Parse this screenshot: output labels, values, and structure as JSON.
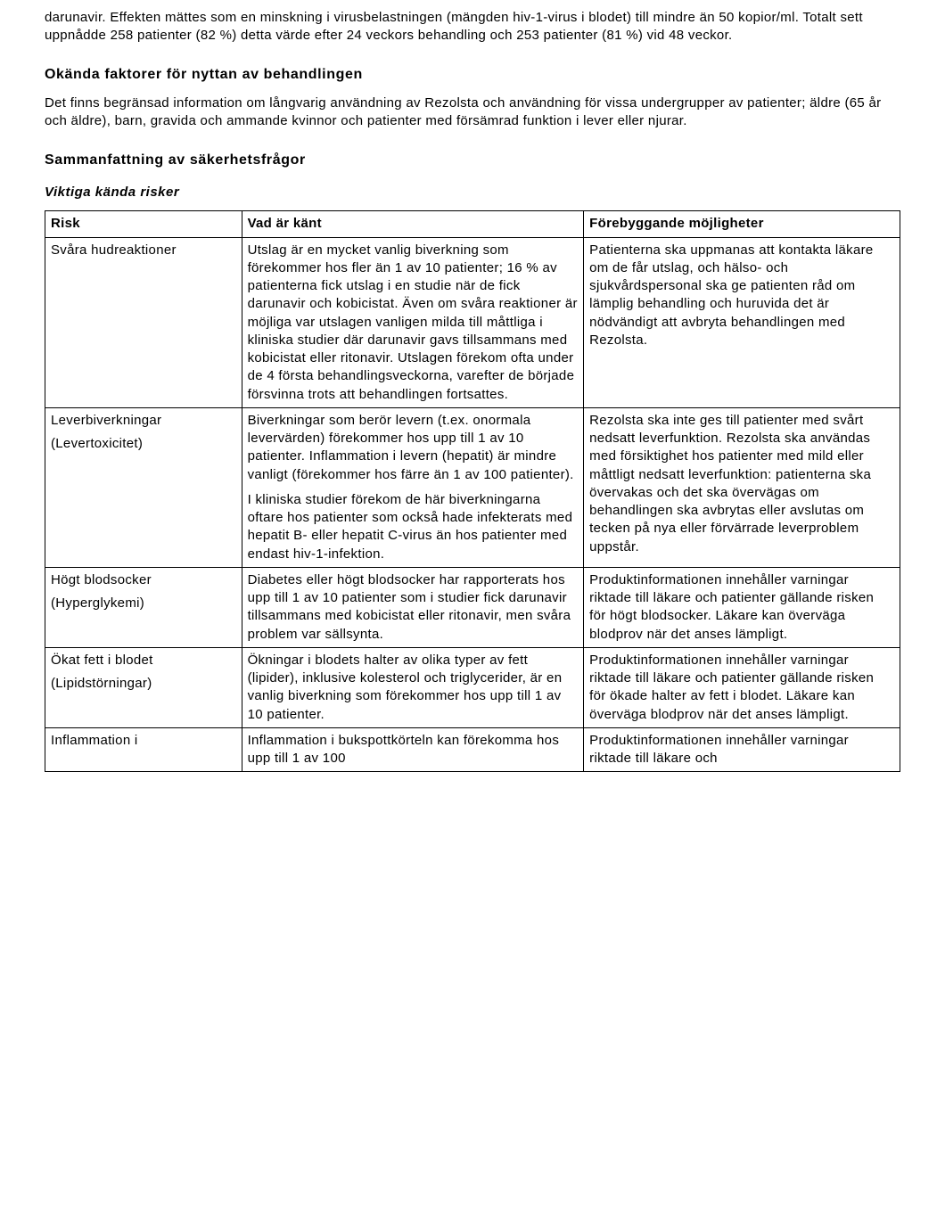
{
  "intro": {
    "p1": "darunavir. Effekten mättes som en minskning i virusbelastningen (mängden hiv-1-virus i blodet) till mindre än 50 kopior/ml. Totalt sett uppnådde 258 patienter (82 %) detta värde efter 24 veckors behandling och 253 patienter (81 %) vid 48 veckor.",
    "h1": "Okända faktorer för nyttan av behandlingen",
    "p2": "Det finns begränsad information om långvarig användning av Rezolsta och användning för vissa undergrupper av patienter; äldre (65 år och äldre), barn, gravida och ammande kvinnor och patienter med försämrad funktion i lever eller njurar.",
    "h2": "Sammanfattning av säkerhetsfrågor",
    "h3": "Viktiga kända risker"
  },
  "table": {
    "headers": {
      "c1": "Risk",
      "c2": "Vad är känt",
      "c3": "Förebyggande möjligheter"
    },
    "rows": [
      {
        "risk_main": "Svåra hudreaktioner",
        "risk_sub": "",
        "known": "Utslag är en mycket vanlig biverkning som förekommer hos fler än 1 av 10 patienter; 16 % av patienterna fick utslag i en studie när de fick darunavir och kobicistat. Även om svåra reaktioner är möjliga var utslagen vanligen milda till måttliga i kliniska studier där darunavir gavs tillsammans med kobicistat eller ritonavir. Utslagen förekom ofta under de 4 första behandlingsveckorna, varefter de började försvinna trots att behandlingen fortsattes.",
        "known2": "",
        "prevent": "Patienterna ska uppmanas att kontakta läkare om de får utslag, och hälso- och sjukvårdspersonal ska ge patienten råd om lämplig behandling och huruvida det är nödvändigt att avbryta behandlingen med Rezolsta."
      },
      {
        "risk_main": "Leverbiverkningar",
        "risk_sub": "(Levertoxicitet)",
        "known": "Biverkningar som berör levern (t.ex. onormala levervärden) förekommer hos upp till 1 av 10 patienter. Inflammation i levern (hepatit) är mindre vanligt (förekommer hos färre än 1 av 100 patienter).",
        "known2": "I kliniska studier förekom de här biverkningarna oftare hos patienter som också hade infekterats med hepatit B- eller hepatit C-virus än hos patienter med endast hiv-1-infektion.",
        "prevent": "Rezolsta ska inte ges till patienter med svårt nedsatt leverfunktion. Rezolsta ska användas med försiktighet hos patienter med mild eller måttligt nedsatt leverfunktion: patienterna ska övervakas och det ska övervägas om behandlingen ska avbrytas eller avslutas om tecken på nya eller förvärrade leverproblem uppstår."
      },
      {
        "risk_main": "Högt blodsocker",
        "risk_sub": "(Hyperglykemi)",
        "known": "Diabetes eller högt blodsocker har rapporterats hos upp till 1 av 10 patienter som i studier fick darunavir tillsammans med kobicistat eller ritonavir, men svåra problem var sällsynta.",
        "known2": "",
        "prevent": "Produktinformationen innehåller varningar riktade till läkare och patienter gällande risken för högt blodsocker. Läkare kan överväga blodprov när det anses lämpligt."
      },
      {
        "risk_main": "Ökat fett i blodet",
        "risk_sub": "(Lipidstörningar)",
        "known": "Ökningar i blodets halter av olika typer av fett (lipider), inklusive kolesterol och triglycerider, är en vanlig biverkning som förekommer hos upp till 1 av 10 patienter.",
        "known2": "",
        "prevent": "Produktinformationen innehåller varningar riktade till läkare och patienter gällande risken för ökade halter av fett i blodet. Läkare kan överväga blodprov när det anses lämpligt."
      },
      {
        "risk_main": "Inflammation i",
        "risk_sub": "",
        "known": "Inflammation i bukspottkörteln kan förekomma hos upp till 1 av 100",
        "known2": "",
        "prevent": "Produktinformationen innehåller varningar riktade till läkare och"
      }
    ]
  }
}
